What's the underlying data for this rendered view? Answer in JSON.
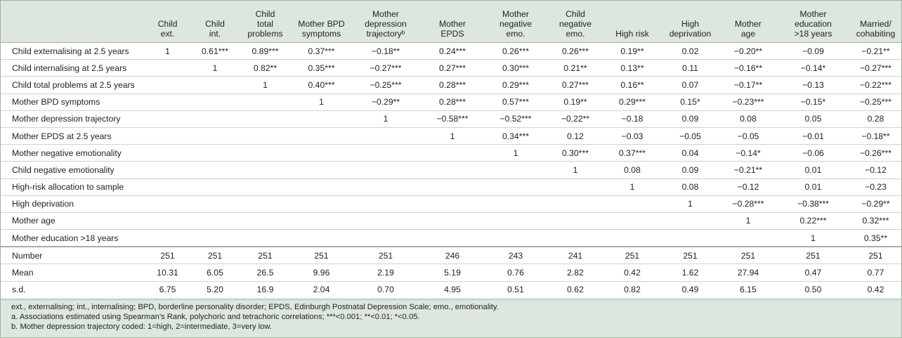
{
  "table": {
    "columns": [
      "Child\next.",
      "Child\nint.",
      "Child\ntotal\nproblems",
      "Mother BPD\nsymptoms",
      "Mother\ndepression\ntrajectoryᵇ",
      "Mother\nEPDS",
      "Mother\nnegative\nemo.",
      "Child\nnegative\nemo.",
      "High risk",
      "High\ndeprivation",
      "Mother\nage",
      "Mother\neducation\n>18 years",
      "Married/\ncohabiting"
    ],
    "rows": [
      {
        "label": "Child externalising at 2.5 years",
        "cells": [
          "1",
          "0.61***",
          "0.89***",
          "0.37***",
          "−0.18**",
          "0.24***",
          "0.26***",
          "0.26***",
          "0.19**",
          "0.02",
          "−0.20**",
          "−0.09",
          "−0.21**"
        ]
      },
      {
        "label": "Child internalising at 2.5 years",
        "cells": [
          null,
          "1",
          "0.82**",
          "0.35***",
          "−0.27***",
          "0.27***",
          "0.30***",
          "0.21**",
          "0.13**",
          "0.11",
          "−0.16**",
          "−0.14*",
          "−0.27***"
        ]
      },
      {
        "label": "Child total problems at 2.5 years",
        "cells": [
          null,
          null,
          "1",
          "0.40***",
          "−0.25***",
          "0.28***",
          "0.29***",
          "0.27***",
          "0.16**",
          "0.07",
          "−0.17**",
          "−0.13",
          "−0.22***"
        ]
      },
      {
        "label": "Mother BPD symptoms",
        "cells": [
          null,
          null,
          null,
          "1",
          "−0.29**",
          "0.28***",
          "0.57***",
          "0.19**",
          "0.29***",
          "0.15*",
          "−0.23***",
          "−0.15*",
          "−0.25***"
        ]
      },
      {
        "label": "Mother depression trajectory",
        "cells": [
          null,
          null,
          null,
          null,
          "1",
          "−0.58***",
          "−0.52***",
          "−0.22**",
          "−0.18",
          "0.09",
          "0.08",
          "0.05",
          "0.28"
        ]
      },
      {
        "label": "Mother EPDS at 2.5 years",
        "cells": [
          null,
          null,
          null,
          null,
          null,
          "1",
          "0.34***",
          "0.12",
          "−0.03",
          "−0.05",
          "−0.05",
          "−0.01",
          "−0.18**"
        ]
      },
      {
        "label": "Mother negative emotionality",
        "cells": [
          null,
          null,
          null,
          null,
          null,
          null,
          "1",
          "0.30***",
          "0.37***",
          "0.04",
          "−0.14*",
          "−0.06",
          "−0.26***"
        ]
      },
      {
        "label": "Child negative emotionality",
        "cells": [
          null,
          null,
          null,
          null,
          null,
          null,
          null,
          "1",
          "0.08",
          "0.09",
          "−0.21**",
          "0.01",
          "−0.12"
        ]
      },
      {
        "label": "High-risk allocation to sample",
        "cells": [
          null,
          null,
          null,
          null,
          null,
          null,
          null,
          null,
          "1",
          "0.08",
          "−0.12",
          "0.01",
          "−0.23"
        ]
      },
      {
        "label": "High deprivation",
        "cells": [
          null,
          null,
          null,
          null,
          null,
          null,
          null,
          null,
          null,
          "1",
          "−0.28***",
          "−0.38***",
          "−0.29**"
        ]
      },
      {
        "label": "Mother age",
        "cells": [
          null,
          null,
          null,
          null,
          null,
          null,
          null,
          null,
          null,
          null,
          "1",
          "0.22***",
          "0.32***"
        ]
      },
      {
        "label": "Mother education >18 years",
        "cells": [
          null,
          null,
          null,
          null,
          null,
          null,
          null,
          null,
          null,
          null,
          null,
          "1",
          "0.35**"
        ]
      }
    ],
    "summary": [
      {
        "label": "Number",
        "cells": [
          "251",
          "251",
          "251",
          "251",
          "251",
          "246",
          "243",
          "241",
          "251",
          "251",
          "251",
          "251",
          "251"
        ]
      },
      {
        "label": "Mean",
        "cells": [
          "10.31",
          "6.05",
          "26.5",
          "9.96",
          "2.19",
          "5.19",
          "0.76",
          "2.82",
          "0.42",
          "1.62",
          "27.94",
          "0.47",
          "0.77"
        ]
      },
      {
        "label": "s.d.",
        "cells": [
          "6.75",
          "5.20",
          "16.9",
          "2.04",
          "0.70",
          "4.95",
          "0.51",
          "0.62",
          "0.82",
          "0.49",
          "6.15",
          "0.50",
          "0.42"
        ]
      }
    ],
    "notes": [
      "ext., externalising; int., internalising; BPD, borderline personality disorder; EPDS, Edinburgh Postnatal Depression Scale; emo., emotionality.",
      "a. Associations estimated using Spearman’s Rank, polychoric and tetrachoric correlations; ***<0.001; **<0.01; *<0.05.",
      "b. Mother depression trajectory coded: 1=high, 2=intermediate, 3=very low."
    ]
  }
}
